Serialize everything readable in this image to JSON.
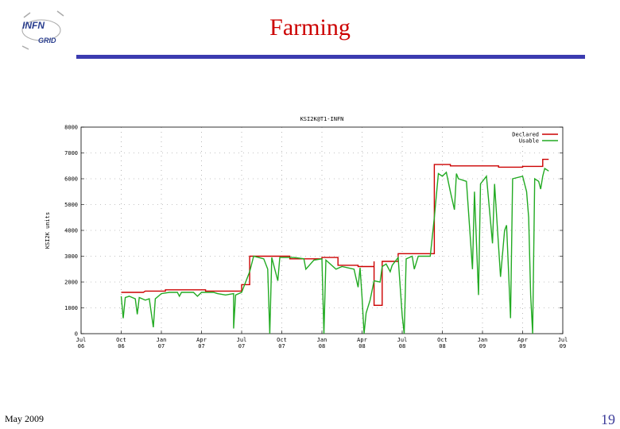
{
  "slide": {
    "title": "Farming",
    "footer_date": "May 2009",
    "page_number": "19",
    "colors": {
      "title": "#cc0000",
      "rule": "#3b3bb0",
      "page_number": "#3d3d9a"
    }
  },
  "logo": {
    "top_text": "INFN",
    "bottom_text": "GRID",
    "icon": "infn-grid-logo"
  },
  "chart_data": {
    "type": "line",
    "title": "KSI2K@T1-INFN",
    "ylabel": "KSI2K units",
    "xlabel": "",
    "ylim": [
      0,
      8000
    ],
    "yticks": [
      "0",
      "1000",
      "2000",
      "3000",
      "4000",
      "5000",
      "6000",
      "7000",
      "8000"
    ],
    "xticks": [
      [
        "Jul",
        "06"
      ],
      [
        "Oct",
        "06"
      ],
      [
        "Jan",
        "07"
      ],
      [
        "Apr",
        "07"
      ],
      [
        "Jul",
        "07"
      ],
      [
        "Oct",
        "07"
      ],
      [
        "Jan",
        "08"
      ],
      [
        "Apr",
        "08"
      ],
      [
        "Jul",
        "08"
      ],
      [
        "Oct",
        "08"
      ],
      [
        "Jan",
        "09"
      ],
      [
        "Apr",
        "09"
      ],
      [
        "Jul",
        "09"
      ]
    ],
    "grid": true,
    "legend_position": "top-right",
    "series": [
      {
        "name": "Declared",
        "color": "#cc0000",
        "points": [
          [
            1.0,
            1600
          ],
          [
            1.55,
            1600
          ],
          [
            1.6,
            1650
          ],
          [
            2.1,
            1650
          ],
          [
            2.1,
            1700
          ],
          [
            3.1,
            1700
          ],
          [
            3.1,
            1650
          ],
          [
            4.0,
            1650
          ],
          [
            4.0,
            1900
          ],
          [
            4.2,
            1900
          ],
          [
            4.2,
            3000
          ],
          [
            5.2,
            3000
          ],
          [
            5.2,
            2900
          ],
          [
            6.0,
            2900
          ],
          [
            6.0,
            2950
          ],
          [
            6.4,
            2950
          ],
          [
            6.4,
            2650
          ],
          [
            6.9,
            2650
          ],
          [
            6.9,
            2600
          ],
          [
            7.3,
            2600
          ],
          [
            7.3,
            2800
          ],
          [
            7.3,
            1100
          ],
          [
            7.5,
            1100
          ],
          [
            7.5,
            2700
          ],
          [
            7.5,
            2800
          ],
          [
            7.9,
            2800
          ],
          [
            7.9,
            3100
          ],
          [
            8.8,
            3100
          ],
          [
            8.8,
            3900
          ],
          [
            8.8,
            6550
          ],
          [
            9.2,
            6550
          ],
          [
            9.2,
            6500
          ],
          [
            10.4,
            6500
          ],
          [
            10.4,
            6450
          ],
          [
            11.0,
            6450
          ],
          [
            11.0,
            6480
          ],
          [
            11.5,
            6480
          ],
          [
            11.5,
            6750
          ],
          [
            11.65,
            6750
          ]
        ]
      },
      {
        "name": "Usable",
        "color": "#22aa22",
        "points": [
          [
            1.0,
            1450
          ],
          [
            1.05,
            600
          ],
          [
            1.1,
            1400
          ],
          [
            1.2,
            1450
          ],
          [
            1.35,
            1350
          ],
          [
            1.4,
            750
          ],
          [
            1.45,
            1400
          ],
          [
            1.6,
            1300
          ],
          [
            1.7,
            1350
          ],
          [
            1.8,
            250
          ],
          [
            1.85,
            1350
          ],
          [
            2.0,
            1550
          ],
          [
            2.2,
            1600
          ],
          [
            2.4,
            1600
          ],
          [
            2.45,
            1450
          ],
          [
            2.5,
            1600
          ],
          [
            2.8,
            1600
          ],
          [
            2.9,
            1450
          ],
          [
            3.0,
            1600
          ],
          [
            3.3,
            1600
          ],
          [
            3.4,
            1550
          ],
          [
            3.6,
            1500
          ],
          [
            3.8,
            1550
          ],
          [
            3.8,
            200
          ],
          [
            3.85,
            1500
          ],
          [
            4.0,
            1600
          ],
          [
            4.2,
            2400
          ],
          [
            4.3,
            3000
          ],
          [
            4.55,
            2900
          ],
          [
            4.65,
            2500
          ],
          [
            4.7,
            0
          ],
          [
            4.75,
            2950
          ],
          [
            4.9,
            2050
          ],
          [
            4.95,
            2950
          ],
          [
            5.3,
            2950
          ],
          [
            5.55,
            2900
          ],
          [
            5.6,
            2500
          ],
          [
            5.8,
            2850
          ],
          [
            6.0,
            2900
          ],
          [
            6.05,
            0
          ],
          [
            6.1,
            2850
          ],
          [
            6.35,
            2500
          ],
          [
            6.5,
            2600
          ],
          [
            6.8,
            2500
          ],
          [
            6.9,
            1800
          ],
          [
            6.95,
            2550
          ],
          [
            7.0,
            1400
          ],
          [
            7.05,
            0
          ],
          [
            7.1,
            800
          ],
          [
            7.2,
            1300
          ],
          [
            7.3,
            2050
          ],
          [
            7.45,
            2000
          ],
          [
            7.5,
            2600
          ],
          [
            7.6,
            2700
          ],
          [
            7.7,
            2400
          ],
          [
            7.75,
            2650
          ],
          [
            7.9,
            2950
          ],
          [
            8.0,
            700
          ],
          [
            8.05,
            0
          ],
          [
            8.1,
            2900
          ],
          [
            8.25,
            3000
          ],
          [
            8.3,
            2500
          ],
          [
            8.4,
            3000
          ],
          [
            8.6,
            3000
          ],
          [
            8.7,
            3000
          ],
          [
            8.8,
            4500
          ],
          [
            8.9,
            6200
          ],
          [
            9.0,
            6100
          ],
          [
            9.1,
            6250
          ],
          [
            9.2,
            5500
          ],
          [
            9.3,
            4800
          ],
          [
            9.35,
            6200
          ],
          [
            9.4,
            6000
          ],
          [
            9.6,
            5900
          ],
          [
            9.75,
            2500
          ],
          [
            9.8,
            5500
          ],
          [
            9.9,
            1500
          ],
          [
            9.95,
            5800
          ],
          [
            10.1,
            6100
          ],
          [
            10.25,
            3500
          ],
          [
            10.3,
            5800
          ],
          [
            10.45,
            2200
          ],
          [
            10.55,
            4000
          ],
          [
            10.6,
            4200
          ],
          [
            10.7,
            600
          ],
          [
            10.75,
            6000
          ],
          [
            11.0,
            6100
          ],
          [
            11.1,
            5500
          ],
          [
            11.15,
            4500
          ],
          [
            11.2,
            1500
          ],
          [
            11.25,
            0
          ],
          [
            11.3,
            6000
          ],
          [
            11.4,
            5900
          ],
          [
            11.45,
            5600
          ],
          [
            11.5,
            6100
          ],
          [
            11.55,
            6400
          ],
          [
            11.65,
            6300
          ]
        ]
      }
    ]
  }
}
